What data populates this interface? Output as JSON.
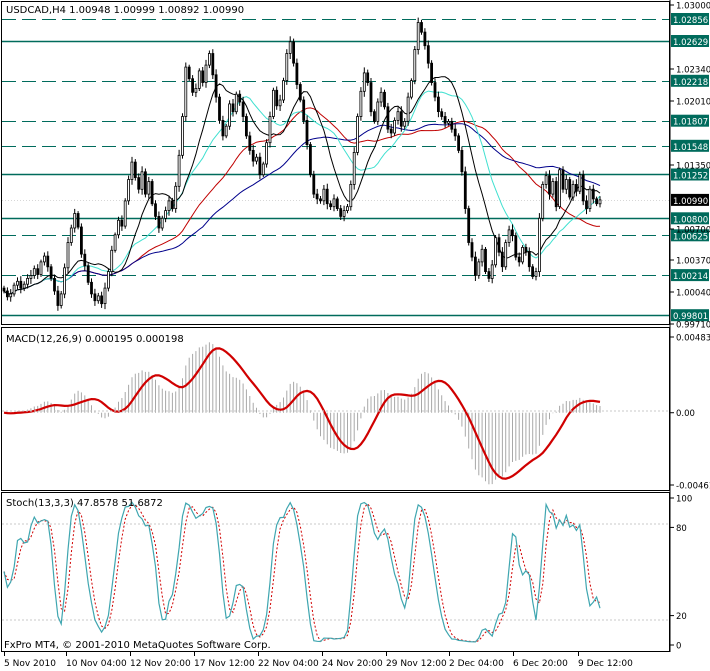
{
  "chart_data": [
    {
      "type": "candlestick",
      "panel": "price",
      "title": "USDCAD,H4  1.00948 1.00999 1.00892 1.00990",
      "ylim": [
        0.9971,
        1.03
      ],
      "y_ticks": [
        "1.03000",
        "1.02340",
        "1.02010",
        "1.01350",
        "1.00370",
        "1.00040",
        "0.99710"
      ],
      "level_lines": [
        {
          "value": 1.02856,
          "label": "1.02856",
          "style": "dashed"
        },
        {
          "value": 1.02629,
          "label": "1.02629",
          "style": "solid"
        },
        {
          "value": 1.02218,
          "label": "1.02218",
          "style": "dashed"
        },
        {
          "value": 1.01807,
          "label": "1.01807",
          "style": "dashed"
        },
        {
          "value": 1.01548,
          "label": "1.01548",
          "style": "dashed"
        },
        {
          "value": 1.01252,
          "label": "1.01252",
          "style": "solid"
        },
        {
          "value": 1.008,
          "label": "1.00800",
          "style": "solid"
        },
        {
          "value": 1.00625,
          "label": "1.00625",
          "style": "dashed"
        },
        {
          "value": 1.00214,
          "label": "1.00214",
          "style": "dashed"
        },
        {
          "value": 0.99801,
          "label": "0.99801",
          "style": "solid"
        }
      ],
      "tick_label_extra": {
        "value": 1.007,
        "label": "1.00700"
      },
      "current_price": {
        "value": 1.0099,
        "label": "1.00990"
      },
      "closes": [
        1.0005,
        0.9999,
        1.0002,
        1.0011,
        1.0015,
        1.0008,
        1.0012,
        1.0018,
        1.0021,
        1.0028,
        1.0022,
        1.0035,
        1.0041,
        1.003,
        1.0018,
        1.0005,
        0.999,
        1.0002,
        1.0029,
        1.0055,
        1.007,
        1.0085,
        1.0071,
        1.0043,
        1.0031,
        1.0014,
        1.0002,
        0.9995,
        1.0,
        0.9992,
        1.0008,
        1.0025,
        1.0047,
        1.0063,
        1.0078,
        1.0072,
        1.0098,
        1.012,
        1.0138,
        1.0122,
        1.011,
        1.0128,
        1.0105,
        1.0118,
        1.0095,
        1.0082,
        1.007,
        1.008,
        1.0088,
        1.0098,
        1.009,
        1.0113,
        1.0145,
        1.0185,
        1.0236,
        1.0224,
        1.021,
        1.0214,
        1.0232,
        1.022,
        1.0238,
        1.025,
        1.0228,
        1.0205,
        1.0181,
        1.0165,
        1.0175,
        1.0198,
        1.019,
        1.0208,
        1.02,
        1.0185,
        1.0165,
        1.015,
        1.0139,
        1.0143,
        1.0125,
        1.0136,
        1.0158,
        1.0185,
        1.0212,
        1.0196,
        1.0202,
        1.0222,
        1.025,
        1.0262,
        1.024,
        1.0218,
        1.0202,
        1.0181,
        1.0156,
        1.0125,
        1.0105,
        1.01,
        1.0098,
        1.011,
        1.0095,
        1.0092,
        1.01,
        1.009,
        1.0082,
        1.0088,
        1.0092,
        1.0115,
        1.0148,
        1.0185,
        1.0211,
        1.023,
        1.022,
        1.019,
        1.018,
        1.02,
        1.021,
        1.0195,
        1.0172,
        1.0168,
        1.0181,
        1.019,
        1.0175,
        1.018,
        1.0205,
        1.0222,
        1.0254,
        1.0282,
        1.0272,
        1.0258,
        1.024,
        1.022,
        1.0205,
        1.019,
        1.0185,
        1.0178,
        1.018,
        1.0172,
        1.0165,
        1.015,
        1.0128,
        1.009,
        1.0055,
        1.004,
        1.0021,
        1.0035,
        1.0048,
        1.0025,
        1.0018,
        1.0032,
        1.006,
        1.0045,
        1.003,
        1.0055,
        1.0068,
        1.0062,
        1.004,
        1.0035,
        1.005,
        1.0045,
        1.003,
        1.002,
        1.0025,
        1.008,
        1.0115,
        1.0124,
        1.0105,
        1.0118,
        1.0092,
        1.013,
        1.011,
        1.012,
        1.0102,
        1.0115,
        1.0108,
        1.0125,
        1.0098,
        1.009,
        1.011,
        1.01,
        1.0095,
        1.0099
      ]
    },
    {
      "type": "line",
      "panel": "indicator",
      "title": "MACD(12,26,9) 0.000195 0.000198",
      "ylim": [
        -0.00461,
        0.00483
      ],
      "y_ticks": [
        "0.00483",
        "0.00",
        "-0.00461"
      ]
    },
    {
      "type": "line",
      "panel": "indicator",
      "title": "Stoch(13,3,3) 47.8578 51.6872",
      "ylim": [
        0,
        100
      ],
      "y_ticks": [
        "100",
        "80",
        "20",
        "0"
      ]
    }
  ],
  "x_ticks": [
    "5 Nov 2010",
    "10 Nov 04:00",
    "12 Nov 20:00",
    "17 Nov 12:00",
    "22 Nov 04:00",
    "24 Nov 20:00",
    "29 Nov 12:00",
    "2 Dec 04:00",
    "6 Dec 20:00",
    "9 Dec 12:00"
  ],
  "copyright": "FxPro MT4, © 2001-2010 MetaQuotes Software Corp.",
  "colors": {
    "bull": "#ffffff",
    "bear": "#000000",
    "level": "#006b5c",
    "ma_red": "#c00000",
    "ma_blue": "#00008b",
    "ma_aqua": "#40e0d0",
    "ma_black": "#000000",
    "macd_line": "#d00000",
    "stoch_main": "#3fa6b0",
    "stoch_signal": "#d00000",
    "price_tag": "#006b5c"
  }
}
